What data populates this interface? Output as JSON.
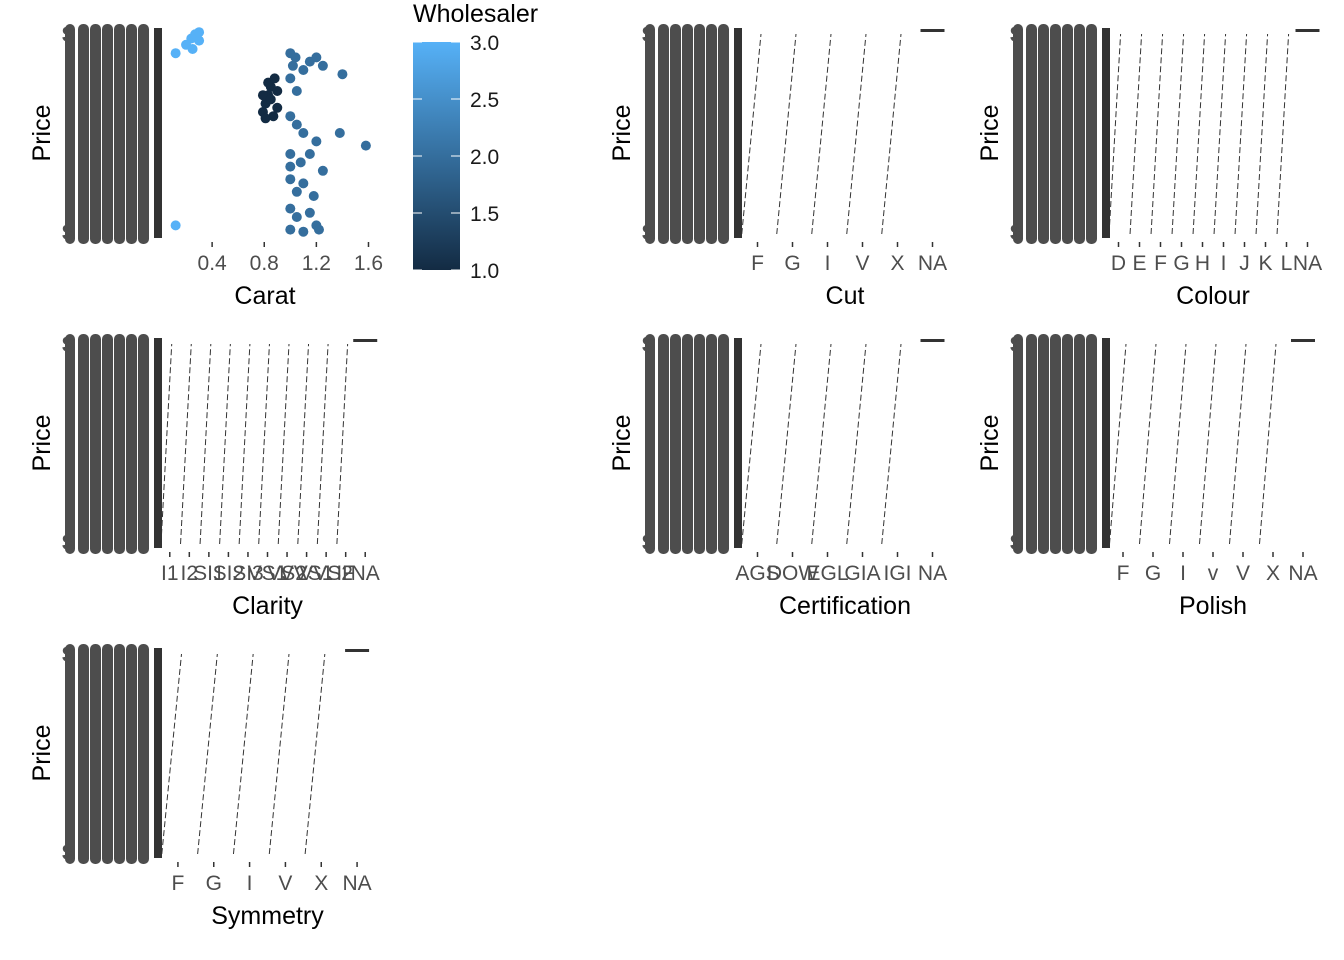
{
  "chart_data": [
    {
      "type": "scatter",
      "name": "carat",
      "xlabel": "Carat",
      "ylabel": "Price",
      "x_ticks": [
        "0.4",
        "0.8",
        "1.2",
        "1.6"
      ],
      "x_tick_values": [
        0.4,
        0.8,
        1.2,
        1.6
      ],
      "xlim": [
        0.0,
        1.65
      ],
      "ylim": [
        0,
        1
      ],
      "color_by": "Wholesaler",
      "points": [
        {
          "x": 0.12,
          "y": 0.06,
          "w": 3.0
        },
        {
          "x": 0.12,
          "y": 0.88,
          "w": 3.0
        },
        {
          "x": 0.2,
          "y": 0.92,
          "w": 3.0
        },
        {
          "x": 0.24,
          "y": 0.95,
          "w": 3.0
        },
        {
          "x": 0.27,
          "y": 0.97,
          "w": 3.0
        },
        {
          "x": 0.3,
          "y": 0.94,
          "w": 3.0
        },
        {
          "x": 0.3,
          "y": 0.98,
          "w": 3.0
        },
        {
          "x": 0.25,
          "y": 0.9,
          "w": 3.0
        },
        {
          "x": 0.79,
          "y": 0.6,
          "w": 1.0
        },
        {
          "x": 0.81,
          "y": 0.64,
          "w": 1.0
        },
        {
          "x": 0.83,
          "y": 0.68,
          "w": 1.0
        },
        {
          "x": 0.85,
          "y": 0.72,
          "w": 1.0
        },
        {
          "x": 0.87,
          "y": 0.58,
          "w": 1.0
        },
        {
          "x": 0.9,
          "y": 0.62,
          "w": 1.0
        },
        {
          "x": 0.79,
          "y": 0.68,
          "w": 1.0
        },
        {
          "x": 0.83,
          "y": 0.74,
          "w": 1.0
        },
        {
          "x": 0.88,
          "y": 0.76,
          "w": 1.0
        },
        {
          "x": 0.9,
          "y": 0.7,
          "w": 1.0
        },
        {
          "x": 0.81,
          "y": 0.57,
          "w": 1.0
        },
        {
          "x": 0.85,
          "y": 0.66,
          "w": 1.0
        },
        {
          "x": 1.0,
          "y": 0.88,
          "w": 2.0
        },
        {
          "x": 1.02,
          "y": 0.82,
          "w": 2.0
        },
        {
          "x": 1.04,
          "y": 0.86,
          "w": 2.0
        },
        {
          "x": 1.1,
          "y": 0.8,
          "w": 2.0
        },
        {
          "x": 1.15,
          "y": 0.84,
          "w": 2.0
        },
        {
          "x": 1.2,
          "y": 0.86,
          "w": 2.0
        },
        {
          "x": 1.25,
          "y": 0.82,
          "w": 2.0
        },
        {
          "x": 1.4,
          "y": 0.78,
          "w": 2.0
        },
        {
          "x": 1.0,
          "y": 0.76,
          "w": 2.0
        },
        {
          "x": 1.05,
          "y": 0.7,
          "w": 2.0
        },
        {
          "x": 1.0,
          "y": 0.58,
          "w": 2.0
        },
        {
          "x": 1.05,
          "y": 0.54,
          "w": 2.0
        },
        {
          "x": 1.1,
          "y": 0.5,
          "w": 2.0
        },
        {
          "x": 1.2,
          "y": 0.46,
          "w": 2.0
        },
        {
          "x": 1.38,
          "y": 0.5,
          "w": 2.0
        },
        {
          "x": 1.58,
          "y": 0.44,
          "w": 2.0
        },
        {
          "x": 1.0,
          "y": 0.4,
          "w": 2.0
        },
        {
          "x": 1.08,
          "y": 0.36,
          "w": 2.0
        },
        {
          "x": 1.15,
          "y": 0.4,
          "w": 2.0
        },
        {
          "x": 1.25,
          "y": 0.32,
          "w": 2.0
        },
        {
          "x": 1.0,
          "y": 0.28,
          "w": 2.0
        },
        {
          "x": 1.05,
          "y": 0.22,
          "w": 2.0
        },
        {
          "x": 1.1,
          "y": 0.26,
          "w": 2.0
        },
        {
          "x": 1.18,
          "y": 0.2,
          "w": 2.0
        },
        {
          "x": 1.0,
          "y": 0.14,
          "w": 2.0
        },
        {
          "x": 1.05,
          "y": 0.1,
          "w": 2.0
        },
        {
          "x": 1.15,
          "y": 0.12,
          "w": 2.0
        },
        {
          "x": 1.2,
          "y": 0.06,
          "w": 2.0
        },
        {
          "x": 1.0,
          "y": 0.04,
          "w": 2.0
        },
        {
          "x": 1.1,
          "y": 0.03,
          "w": 2.0
        },
        {
          "x": 1.22,
          "y": 0.04,
          "w": 2.0
        },
        {
          "x": 1.0,
          "y": 0.34,
          "w": 2.0
        }
      ]
    },
    {
      "type": "scatter",
      "name": "cut",
      "xlabel": "Cut",
      "ylabel": "Price",
      "categories": [
        "F",
        "G",
        "I",
        "V",
        "X",
        "NA"
      ]
    },
    {
      "type": "scatter",
      "name": "colour",
      "xlabel": "Colour",
      "ylabel": "Price",
      "categories": [
        "D",
        "E",
        "F",
        "G",
        "H",
        "I",
        "J",
        "K",
        "L",
        "NA"
      ]
    },
    {
      "type": "scatter",
      "name": "clarity",
      "xlabel": "Clarity",
      "ylabel": "Price",
      "categories": [
        "I1",
        "I2",
        "SI1",
        "SI2",
        "SI3",
        "VS1",
        "VS2",
        "VVS1",
        "VVS2",
        "IF",
        "NA"
      ]
    },
    {
      "type": "scatter",
      "name": "certification",
      "xlabel": "Certification",
      "ylabel": "Price",
      "categories": [
        "AGS",
        "DOW",
        "EGL",
        "GIA",
        "IGI",
        "NA"
      ]
    },
    {
      "type": "scatter",
      "name": "polish",
      "xlabel": "Polish",
      "ylabel": "Price",
      "categories": [
        "F",
        "G",
        "I",
        "v",
        "V",
        "X",
        "NA"
      ]
    },
    {
      "type": "scatter",
      "name": "symmetry",
      "xlabel": "Symmetry",
      "ylabel": "Price",
      "categories": [
        "F",
        "G",
        "I",
        "V",
        "X",
        "NA"
      ]
    }
  ],
  "legend": {
    "title": "Wholesaler",
    "ticks": [
      "3.0",
      "2.5",
      "2.0",
      "1.5",
      "1.0"
    ],
    "tick_values": [
      3.0,
      2.5,
      2.0,
      1.5,
      1.0
    ],
    "color_low": "#132b43",
    "color_high": "#56b1f7"
  },
  "y_tick_label_fragment": "$",
  "colors": {
    "axis_text": "#4d4d4d",
    "marks": "#333333"
  }
}
